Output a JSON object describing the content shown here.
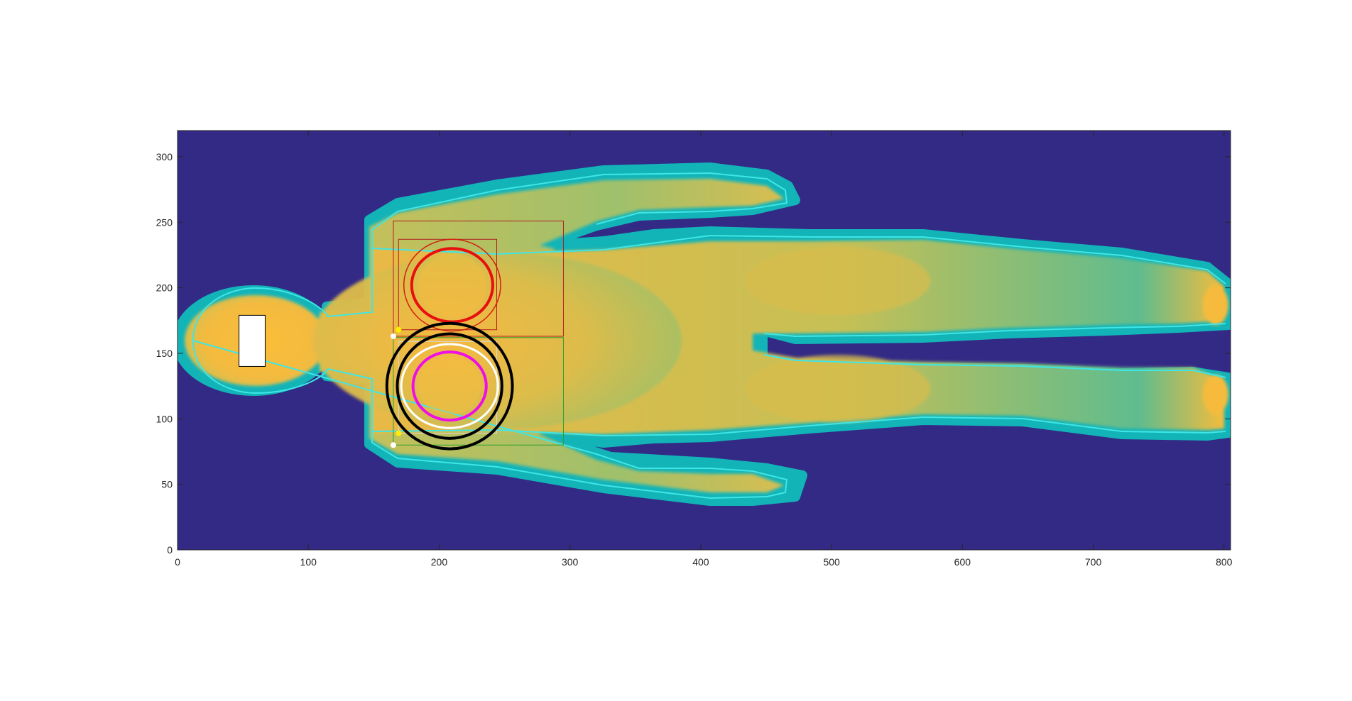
{
  "chart_data": {
    "type": "heatmap",
    "title": "",
    "xlabel": "",
    "ylabel": "",
    "xlim": [
      0,
      805
    ],
    "ylim": [
      0,
      320
    ],
    "x_ticks": [
      0,
      100,
      200,
      300,
      400,
      500,
      600,
      700,
      800
    ],
    "y_ticks": [
      0,
      50,
      100,
      150,
      200,
      250,
      300
    ],
    "grid": false,
    "legend": "none",
    "colors": {
      "background": "#332a85",
      "body_high": "#f9bd3b",
      "body_mid": "#c8c057",
      "body_edge": "#12b4b8",
      "contour": "#3fe6e6"
    },
    "overlays": {
      "upper_breast": {
        "center": [
          210,
          202
        ],
        "outer_contour": {
          "rx": 37,
          "ry": 35,
          "color": "#d21f10"
        },
        "inner_contour": {
          "rx": 31,
          "ry": 28,
          "color": "#e80f0f"
        },
        "box_large": {
          "x": [
            165,
            295
          ],
          "y": [
            163,
            251
          ],
          "color": "#b02020"
        },
        "box_small": {
          "x": [
            169,
            244
          ],
          "y": [
            168,
            237
          ],
          "color": "#b02020"
        }
      },
      "lower_breast": {
        "center": [
          208,
          125
        ],
        "outer_circle_1": {
          "r": 48,
          "color": "#000000"
        },
        "outer_circle_2": {
          "r": 40,
          "color": "#000000"
        },
        "white_contour": {
          "rx": 37,
          "ry": 32,
          "color": "#ffffff"
        },
        "inner_contour": {
          "rx": 28,
          "ry": 26,
          "color": "#ee0ee6"
        },
        "box_large": {
          "x": [
            165,
            295
          ],
          "y": [
            80,
            162
          ],
          "color": "#2e9e2e"
        },
        "box_small": {
          "x": [
            169,
            244
          ],
          "y": [
            89,
            159
          ],
          "color": "#d8d8d8"
        }
      },
      "head_rect": {
        "x": [
          47,
          67
        ],
        "y": [
          140,
          179
        ]
      },
      "markers": [
        {
          "x": 165,
          "y": 163,
          "color": "#ffffff"
        },
        {
          "x": 169,
          "y": 168,
          "color": "#ffee00"
        },
        {
          "x": 165,
          "y": 80,
          "color": "#ffffff"
        },
        {
          "x": 169,
          "y": 89,
          "color": "#ffee00"
        }
      ]
    }
  }
}
